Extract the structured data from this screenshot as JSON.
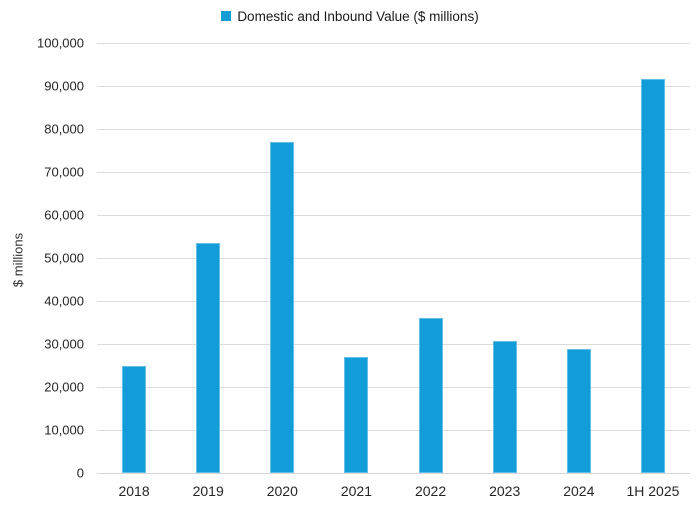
{
  "legend": {
    "label": "Domestic and Inbound Value ($ millions)"
  },
  "colors": {
    "bar": "#129dd9",
    "bar_edge": "rgba(255,255,255,0.35)",
    "gridline": "#dcdcdc",
    "axis_line": "#d6d6d6",
    "text": "#262626"
  },
  "chart_data": {
    "type": "bar",
    "title": "",
    "series_name": "Domestic and Inbound Value ($ millions)",
    "categories": [
      "2018",
      "2019",
      "2020",
      "2021",
      "2022",
      "2023",
      "2024",
      "1H 2025"
    ],
    "values": [
      25000,
      53500,
      76900,
      27000,
      36100,
      30600,
      28800,
      91600
    ],
    "xlabel": "",
    "ylabel": "$ millions",
    "ylim": [
      0,
      100000
    ],
    "ytick_interval": 10000,
    "ytick_labels": [
      "0",
      "10,000",
      "20,000",
      "30,000",
      "40,000",
      "50,000",
      "60,000",
      "70,000",
      "80,000",
      "90,000",
      "100,000"
    ],
    "grid": "horizontal",
    "legend_position": "top"
  }
}
